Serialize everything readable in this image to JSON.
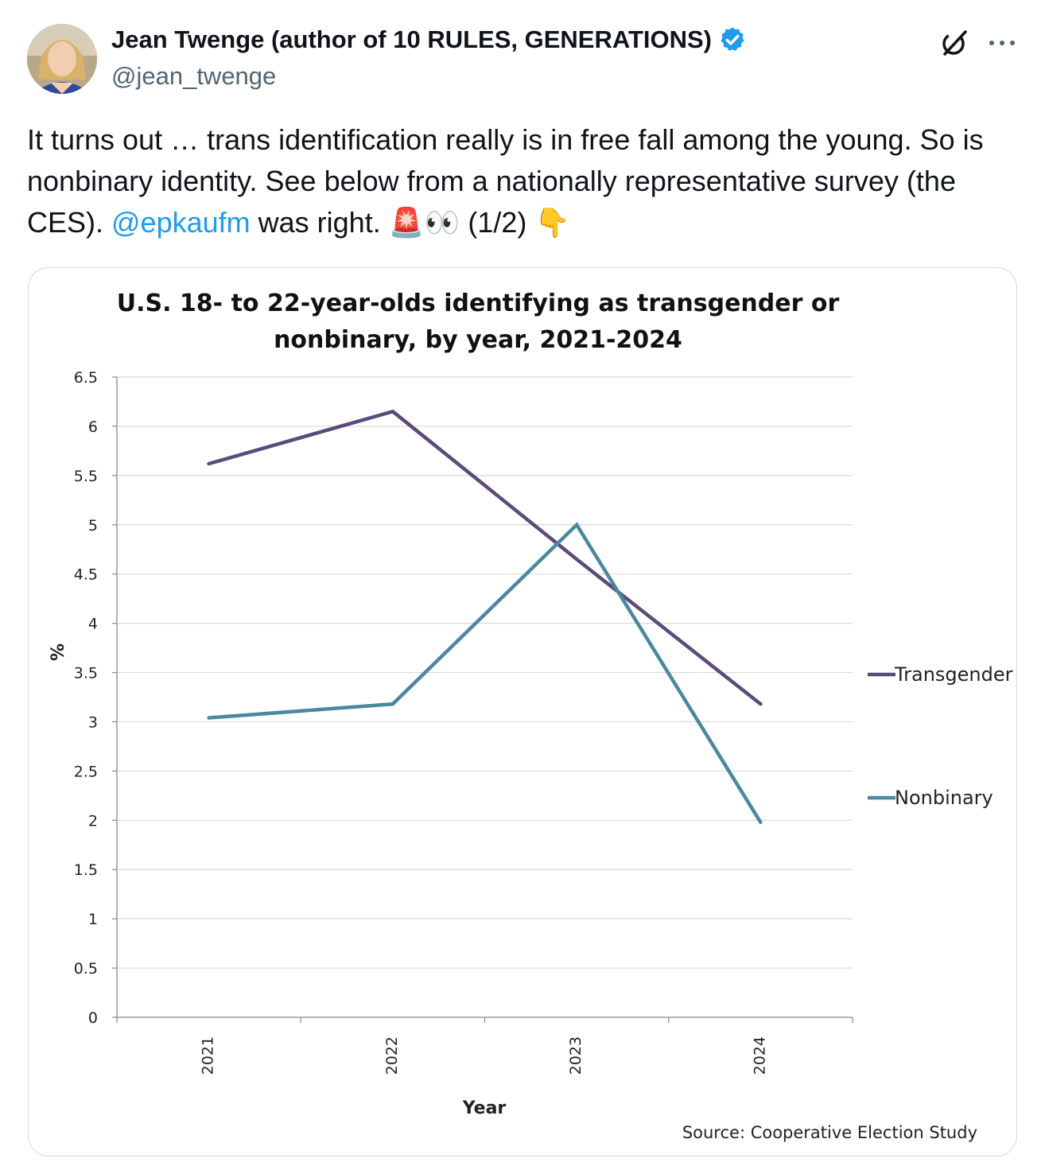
{
  "author": {
    "display_name": "Jean Twenge (author of 10 RULES, GENERATIONS)",
    "handle": "@jean_twenge",
    "verified_color": "#1d9bf0"
  },
  "tweet": {
    "text_before_mention": "It turns out … trans identification really is in free fall among the young. So is nonbinary identity. See below from a nationally representative survey (the CES). ",
    "mention": "@epkaufm",
    "text_after_mention": " was right. ",
    "emoji_1": "🚨",
    "emoji_2": "👀",
    "thread_count": " (1/2) ",
    "emoji_3": "👇"
  },
  "actions": {
    "grok_icon": "grok-icon",
    "more_icon": "more-dots-icon"
  },
  "chart_data": {
    "type": "line",
    "title_line1": "U.S. 18- to 22-year-olds identifying as transgender or",
    "title_line2": "nonbinary, by year, 2021-2024",
    "categories": [
      "2021",
      "2022",
      "2023",
      "2024"
    ],
    "series": [
      {
        "name": "Transgender",
        "values": [
          5.62,
          6.15,
          4.65,
          3.18
        ],
        "color": "#5c4a78"
      },
      {
        "name": "Nonbinary",
        "values": [
          3.04,
          3.18,
          5.0,
          1.98
        ],
        "color": "#4a88a0"
      }
    ],
    "ylim": [
      0,
      6.5
    ],
    "yticks": [
      "0",
      "0.5",
      "1",
      "1.5",
      "2",
      "2.5",
      "3",
      "3.5",
      "4",
      "4.5",
      "5",
      "5.5",
      "6",
      "6.5"
    ],
    "xlabel": "Year",
    "ylabel": "%",
    "grid": true,
    "legend_position": "right",
    "source": "Source: Cooperative Election Study"
  }
}
